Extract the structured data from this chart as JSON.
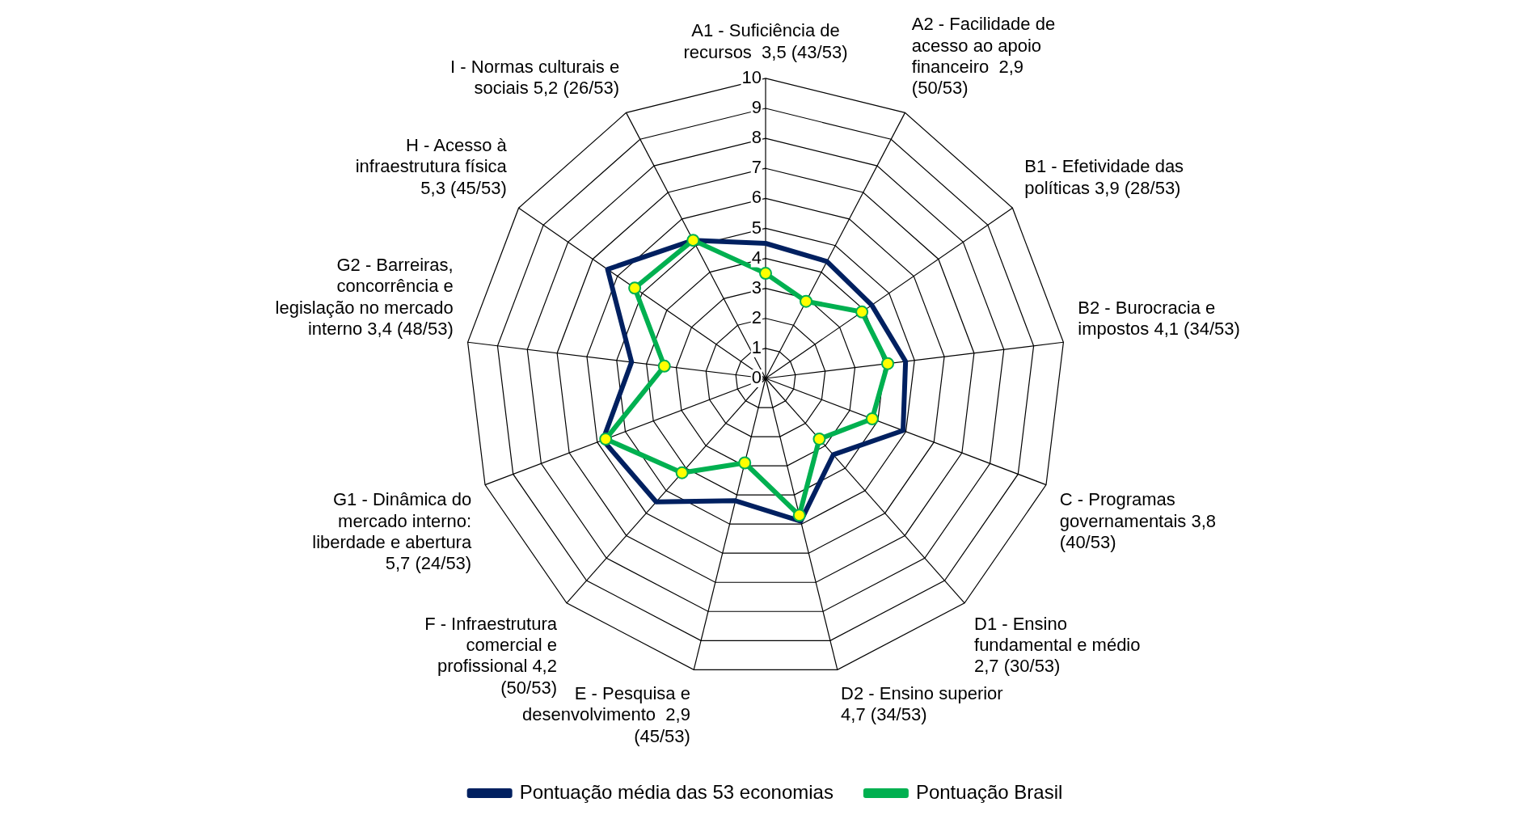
{
  "chart_data": {
    "type": "radar",
    "categories": [
      "A1 - Suficiência de recursos  3,5 (43/53)",
      "A2 - Facilidade de acesso ao apoio financeiro  2,9 (50/53)",
      "B1 - Efetividade das políticas 3,9 (28/53)",
      "B2 - Burocracia e impostos 4,1 (34/53)",
      "C - Programas governamentais 3,8 (40/53)",
      "D1 - Ensino fundamental e médio 2,7 (30/53)",
      "D2 - Ensino superior 4,7 (34/53)",
      "E - Pesquisa e desenvolvimento  2,9 (45/53)",
      "F - Infraestrutura comercial e profissional 4,2 (50/53)",
      "G1 - Dinâmica do mercado interno: liberdade e abertura 5,7 (24/53)",
      "G2 - Barreiras, concorrência e legislação no mercado interno 3,4 (48/53)",
      "H - Acesso à infraestrutura física 5,3 (45/53)",
      "I - Normas culturais e sociais 5,2 (26/53)"
    ],
    "series": [
      {
        "name": "Pontuação média das 53 economias",
        "color": "#002060",
        "marker": "none",
        "values": [
          4.5,
          4.4,
          4.3,
          4.7,
          4.9,
          3.4,
          4.9,
          4.2,
          5.5,
          5.8,
          4.5,
          6.4,
          5.2
        ]
      },
      {
        "name": "Pontuação Brasil",
        "color": "#00b050",
        "marker": "circle",
        "values": [
          3.5,
          2.9,
          3.9,
          4.1,
          3.8,
          2.7,
          4.7,
          2.9,
          4.2,
          5.7,
          3.4,
          5.3,
          5.2
        ]
      }
    ],
    "ylim": [
      0,
      10
    ],
    "yticks": [
      0,
      1,
      2,
      3,
      4,
      5,
      6,
      7,
      8,
      9,
      10
    ],
    "grid": true,
    "legend": "bottom"
  }
}
